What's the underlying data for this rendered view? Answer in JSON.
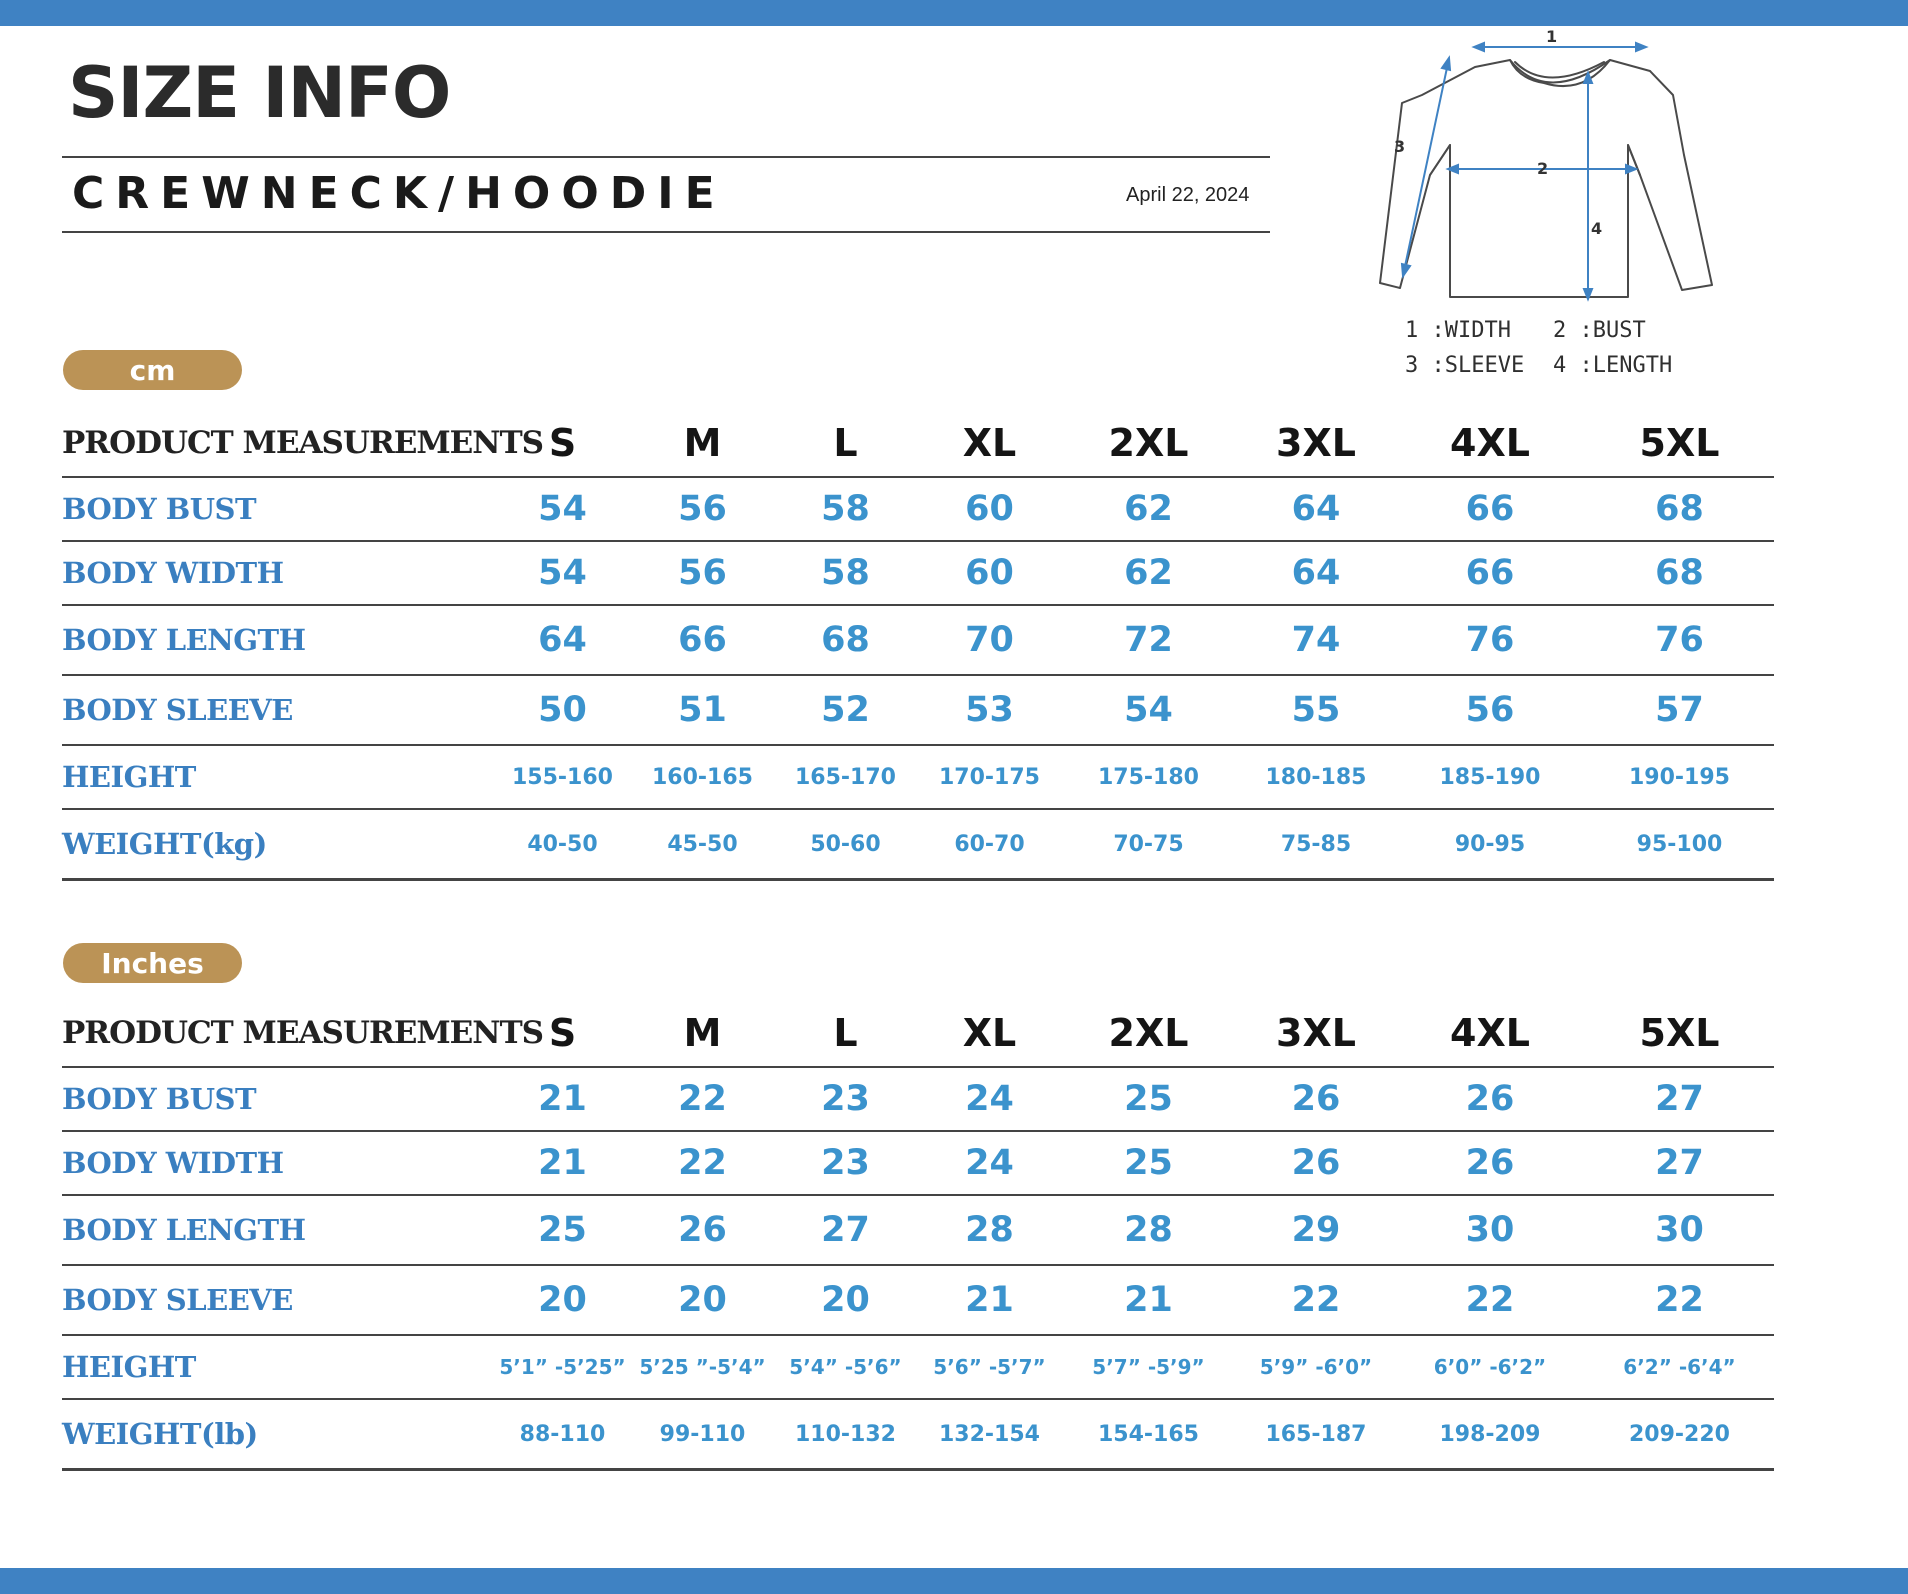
{
  "title": "SIZE INFO",
  "subtitle": "CREWNECK/HOODIE",
  "date": "April 22, 2024",
  "diagram": {
    "markers": [
      "1",
      "2",
      "3",
      "4"
    ],
    "legend": [
      "1 :WIDTH",
      "2 :BUST",
      "3 :SLEEVE",
      "4 :LENGTH"
    ]
  },
  "colors": {
    "accent_bar": "#3f82c3",
    "unit_pill": "#bb9356",
    "row_label": "#3a7fc0",
    "value": "#3b93cd"
  },
  "tables": [
    {
      "unit": "cm",
      "header_label": "PRODUCT MEASUREMENTS",
      "sizes": [
        "S",
        "M",
        "L",
        "XL",
        "2XL",
        "3XL",
        "4XL",
        "5XL"
      ],
      "rows": [
        {
          "label": "BODY BUST",
          "values": [
            "54",
            "56",
            "58",
            "60",
            "62",
            "64",
            "66",
            "68"
          ]
        },
        {
          "label": "BODY WIDTH",
          "values": [
            "54",
            "56",
            "58",
            "60",
            "62",
            "64",
            "66",
            "68"
          ]
        },
        {
          "label": "BODY LENGTH",
          "values": [
            "64",
            "66",
            "68",
            "70",
            "72",
            "74",
            "76",
            "76"
          ]
        },
        {
          "label": "BODY SLEEVE",
          "values": [
            "50",
            "51",
            "52",
            "53",
            "54",
            "55",
            "56",
            "57"
          ]
        },
        {
          "label": "HEIGHT",
          "values": [
            "155-160",
            "160-165",
            "165-170",
            "170-175",
            "175-180",
            "180-185",
            "185-190",
            "190-195"
          ]
        },
        {
          "label": "WEIGHT(kg)",
          "values": [
            "40-50",
            "45-50",
            "50-60",
            "60-70",
            "70-75",
            "75-85",
            "90-95",
            "95-100"
          ]
        }
      ]
    },
    {
      "unit": "Inches",
      "header_label": "PRODUCT MEASUREMENTS",
      "sizes": [
        "S",
        "M",
        "L",
        "XL",
        "2XL",
        "3XL",
        "4XL",
        "5XL"
      ],
      "rows": [
        {
          "label": "BODY BUST",
          "values": [
            "21",
            "22",
            "23",
            "24",
            "25",
            "26",
            "26",
            "27"
          ]
        },
        {
          "label": "BODY WIDTH",
          "values": [
            "21",
            "22",
            "23",
            "24",
            "25",
            "26",
            "26",
            "27"
          ]
        },
        {
          "label": "BODY LENGTH",
          "values": [
            "25",
            "26",
            "27",
            "28",
            "28",
            "29",
            "30",
            "30"
          ]
        },
        {
          "label": "BODY SLEEVE",
          "values": [
            "20",
            "20",
            "20",
            "21",
            "21",
            "22",
            "22",
            "22"
          ]
        },
        {
          "label": "HEIGHT",
          "values": [
            "5’1” -5’25”",
            "5’25 ”-5’4”",
            "5’4” -5’6”",
            "5’6” -5’7”",
            "5’7” -5’9”",
            "5’9” -6’0”",
            "6’0” -6’2”",
            "6’2” -6’4”"
          ]
        },
        {
          "label": "WEIGHT(lb)",
          "values": [
            "88-110",
            "99-110",
            "110-132",
            "132-154",
            "154-165",
            "165-187",
            "198-209",
            "209-220"
          ]
        }
      ]
    }
  ]
}
